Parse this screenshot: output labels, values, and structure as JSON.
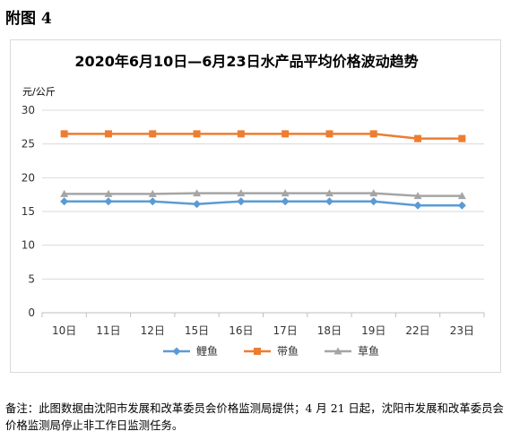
{
  "figure_label": "附图 4",
  "footnote": "备注：此图数据由沈阳市发展和改革委员会价格监测局提供；4 月 21 日起，沈阳市发展和改革委员会价格监测局停止非工作日监测任务。",
  "chart_data": {
    "type": "line",
    "title": "2020年6月10日—6月23日水产品平均价格波动趋势",
    "ylabel": "元/公斤",
    "xlabel": "",
    "categories": [
      "10日",
      "11日",
      "12日",
      "15日",
      "16日",
      "17日",
      "18日",
      "19日",
      "22日",
      "23日"
    ],
    "ylim": [
      0,
      30
    ],
    "yticks": [
      0,
      5,
      10,
      15,
      20,
      25,
      30
    ],
    "grid": true,
    "legend_position": "bottom",
    "series": [
      {
        "name": "鲤鱼",
        "color": "#5b9bd5",
        "marker": "diamond",
        "values": [
          16.5,
          16.5,
          16.5,
          16.1,
          16.5,
          16.5,
          16.5,
          16.5,
          15.9,
          15.9
        ]
      },
      {
        "name": "带鱼",
        "color": "#ed7d31",
        "marker": "square",
        "values": [
          26.5,
          26.5,
          26.5,
          26.5,
          26.5,
          26.5,
          26.5,
          26.5,
          25.8,
          25.8
        ]
      },
      {
        "name": "草鱼",
        "color": "#a5a5a5",
        "marker": "triangle",
        "values": [
          17.6,
          17.6,
          17.6,
          17.7,
          17.7,
          17.7,
          17.7,
          17.7,
          17.3,
          17.3
        ]
      }
    ]
  }
}
